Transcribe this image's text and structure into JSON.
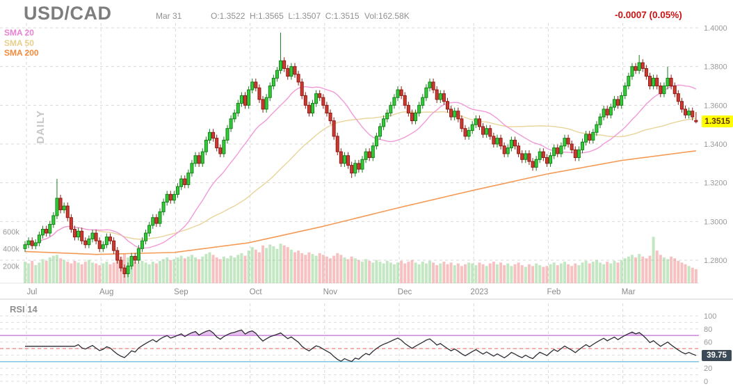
{
  "header": {
    "title": "USD/CAD",
    "date": "Mar 31",
    "ohlc": "O:1.3522  H:1.3565  L:1.3507  C:1.3515",
    "volume": "Vol:162.58K",
    "change": "-0.0007 (0.05%)"
  },
  "legend": {
    "sma20": "SMA 20",
    "sma50": "SMA 50",
    "sma200": "SMA 200"
  },
  "timeframe_label": "DAILY",
  "price_tag": "1.3515",
  "price_axis": [
    "1.4000",
    "1.3800",
    "1.3600",
    "1.3400",
    "1.3200",
    "1.3000",
    "1.2800"
  ],
  "volume_axis": [
    "600k",
    "400k",
    "200k"
  ],
  "months": [
    "Jul",
    "Aug",
    "Sep",
    "Oct",
    "Nov",
    "Dec",
    "2023",
    "Feb",
    "Mar"
  ],
  "rsi": {
    "title": "RSI 14",
    "value_tag": "39.75",
    "axis_labels": [
      100,
      80,
      60,
      20,
      0
    ],
    "overbought_level": 70,
    "mid_level": 50,
    "oversold_level": 30
  },
  "colors": {
    "up": "#33cc3b",
    "up_border": "#157f17",
    "down": "#cc3a32",
    "down_border": "#8c1b14",
    "vol_up": "rgba(121,202,121,0.45)",
    "vol_down": "rgba(240,132,132,0.5)",
    "sma20": "#f09ad8",
    "sma50": "#e8d49a",
    "sma200": "#f59a55",
    "grid": "#d9d9d9",
    "axis_text": "#999999",
    "pane_border": "#cfcfcf",
    "change": "#cc1414",
    "tag_bg": "#ffff00",
    "rsi_line": "#2b2b33",
    "rsi_overbought": "#cf8fe0",
    "rsi_mid": "#e06060",
    "rsi_oversold": "#85c8e8",
    "rsi_fill": "#cf8fe0"
  },
  "chart_data": {
    "type": "candlestick+volume+rsi",
    "symbol": "USD/CAD",
    "interval": "DAILY",
    "price_axis_values": [
      1.4,
      1.38,
      1.36,
      1.34,
      1.32,
      1.3,
      1.28
    ],
    "last_price": 1.3515,
    "last_ohlc": {
      "o": 1.3522,
      "h": 1.3565,
      "l": 1.3507,
      "c": 1.3515
    },
    "last_volume_k": 162.58,
    "rsi_last": 39.75,
    "month_start_index": [
      0,
      21,
      42,
      63,
      84,
      105,
      126,
      147,
      168
    ],
    "open_rule": "previous_close",
    "first_open": 1.286,
    "closes": [
      1.288,
      1.29,
      1.2875,
      1.289,
      1.293,
      1.296,
      1.294,
      1.2985,
      1.303,
      1.312,
      1.306,
      1.308,
      1.302,
      1.296,
      1.292,
      1.295,
      1.29,
      1.288,
      1.291,
      1.294,
      1.29,
      1.286,
      1.288,
      1.292,
      1.29,
      1.285,
      1.28,
      1.276,
      1.273,
      1.277,
      1.282,
      1.28,
      1.286,
      1.29,
      1.294,
      1.298,
      1.302,
      1.299,
      1.305,
      1.31,
      1.314,
      1.311,
      1.314,
      1.318,
      1.322,
      1.319,
      1.325,
      1.33,
      1.334,
      1.33,
      1.336,
      1.342,
      1.346,
      1.343,
      1.338,
      1.335,
      1.342,
      1.348,
      1.353,
      1.356,
      1.361,
      1.365,
      1.36,
      1.368,
      1.372,
      1.369,
      1.363,
      1.358,
      1.364,
      1.37,
      1.374,
      1.378,
      1.383,
      1.379,
      1.375,
      1.38,
      1.376,
      1.372,
      1.365,
      1.36,
      1.356,
      1.361,
      1.366,
      1.364,
      1.36,
      1.356,
      1.352,
      1.344,
      1.336,
      1.33,
      1.334,
      1.329,
      1.325,
      1.33,
      1.327,
      1.332,
      1.336,
      1.333,
      1.339,
      1.344,
      1.349,
      1.353,
      1.356,
      1.36,
      1.364,
      1.368,
      1.365,
      1.36,
      1.356,
      1.352,
      1.356,
      1.36,
      1.364,
      1.369,
      1.372,
      1.368,
      1.363,
      1.366,
      1.362,
      1.358,
      1.354,
      1.357,
      1.353,
      1.348,
      1.344,
      1.347,
      1.35,
      1.353,
      1.349,
      1.345,
      1.348,
      1.344,
      1.34,
      1.343,
      1.339,
      1.335,
      1.338,
      1.342,
      1.339,
      1.335,
      1.332,
      1.335,
      1.331,
      1.328,
      1.332,
      1.336,
      1.333,
      1.33,
      1.334,
      1.338,
      1.335,
      1.339,
      1.343,
      1.34,
      1.337,
      1.333,
      1.337,
      1.341,
      1.345,
      1.342,
      1.346,
      1.35,
      1.354,
      1.358,
      1.355,
      1.359,
      1.363,
      1.36,
      1.365,
      1.37,
      1.375,
      1.38,
      1.378,
      1.382,
      1.379,
      1.375,
      1.37,
      1.374,
      1.37,
      1.366,
      1.37,
      1.374,
      1.37,
      1.366,
      1.362,
      1.358,
      1.355,
      1.357,
      1.354,
      1.3515
    ],
    "wick_overrides": {
      "9": {
        "h": 1.322
      },
      "28": {
        "l": 1.271
      },
      "72": {
        "h": 1.3975
      },
      "92": {
        "l": 1.3225
      },
      "173": {
        "h": 1.386
      },
      "181": {
        "h": 1.38
      },
      "189": {
        "o": 1.3522,
        "h": 1.3565,
        "l": 1.3507
      }
    },
    "volumes_k": [
      250,
      230,
      260,
      210,
      240,
      280,
      260,
      300,
      320,
      330,
      290,
      270,
      250,
      230,
      260,
      240,
      220,
      250,
      270,
      240,
      230,
      210,
      230,
      250,
      220,
      240,
      280,
      310,
      340,
      300,
      270,
      250,
      230,
      260,
      240,
      220,
      250,
      230,
      260,
      280,
      300,
      270,
      280,
      300,
      320,
      290,
      310,
      330,
      300,
      280,
      310,
      340,
      360,
      330,
      300,
      280,
      310,
      290,
      320,
      300,
      330,
      350,
      320,
      380,
      420,
      390,
      360,
      440,
      410,
      450,
      430,
      400,
      460,
      440,
      420,
      390,
      360,
      380,
      350,
      330,
      360,
      340,
      320,
      350,
      330,
      310,
      290,
      320,
      350,
      330,
      300,
      280,
      310,
      290,
      270,
      250,
      280,
      260,
      240,
      270,
      250,
      230,
      260,
      240,
      220,
      240,
      260,
      230,
      250,
      270,
      240,
      220,
      250,
      230,
      260,
      240,
      210,
      230,
      250,
      220,
      240,
      210,
      230,
      200,
      220,
      240,
      230,
      210,
      240,
      220,
      200,
      230,
      250,
      220,
      240,
      210,
      230,
      200,
      220,
      240,
      210,
      190,
      220,
      200,
      230,
      210,
      190,
      200,
      220,
      240,
      210,
      230,
      250,
      220,
      200,
      230,
      210,
      240,
      260,
      230,
      250,
      270,
      240,
      220,
      250,
      230,
      260,
      240,
      270,
      290,
      310,
      330,
      300,
      340,
      310,
      290,
      320,
      540,
      380,
      330,
      300,
      280,
      310,
      290,
      260,
      240,
      220,
      200,
      180,
      163
    ],
    "sma200_keyframes": [
      [
        0,
        1.2845
      ],
      [
        20,
        1.283
      ],
      [
        42,
        1.284
      ],
      [
        63,
        1.289
      ],
      [
        84,
        1.2975
      ],
      [
        105,
        1.307
      ],
      [
        126,
        1.316
      ],
      [
        147,
        1.3245
      ],
      [
        168,
        1.3315
      ],
      [
        189,
        1.3365
      ]
    ],
    "rsi_period": 14
  }
}
